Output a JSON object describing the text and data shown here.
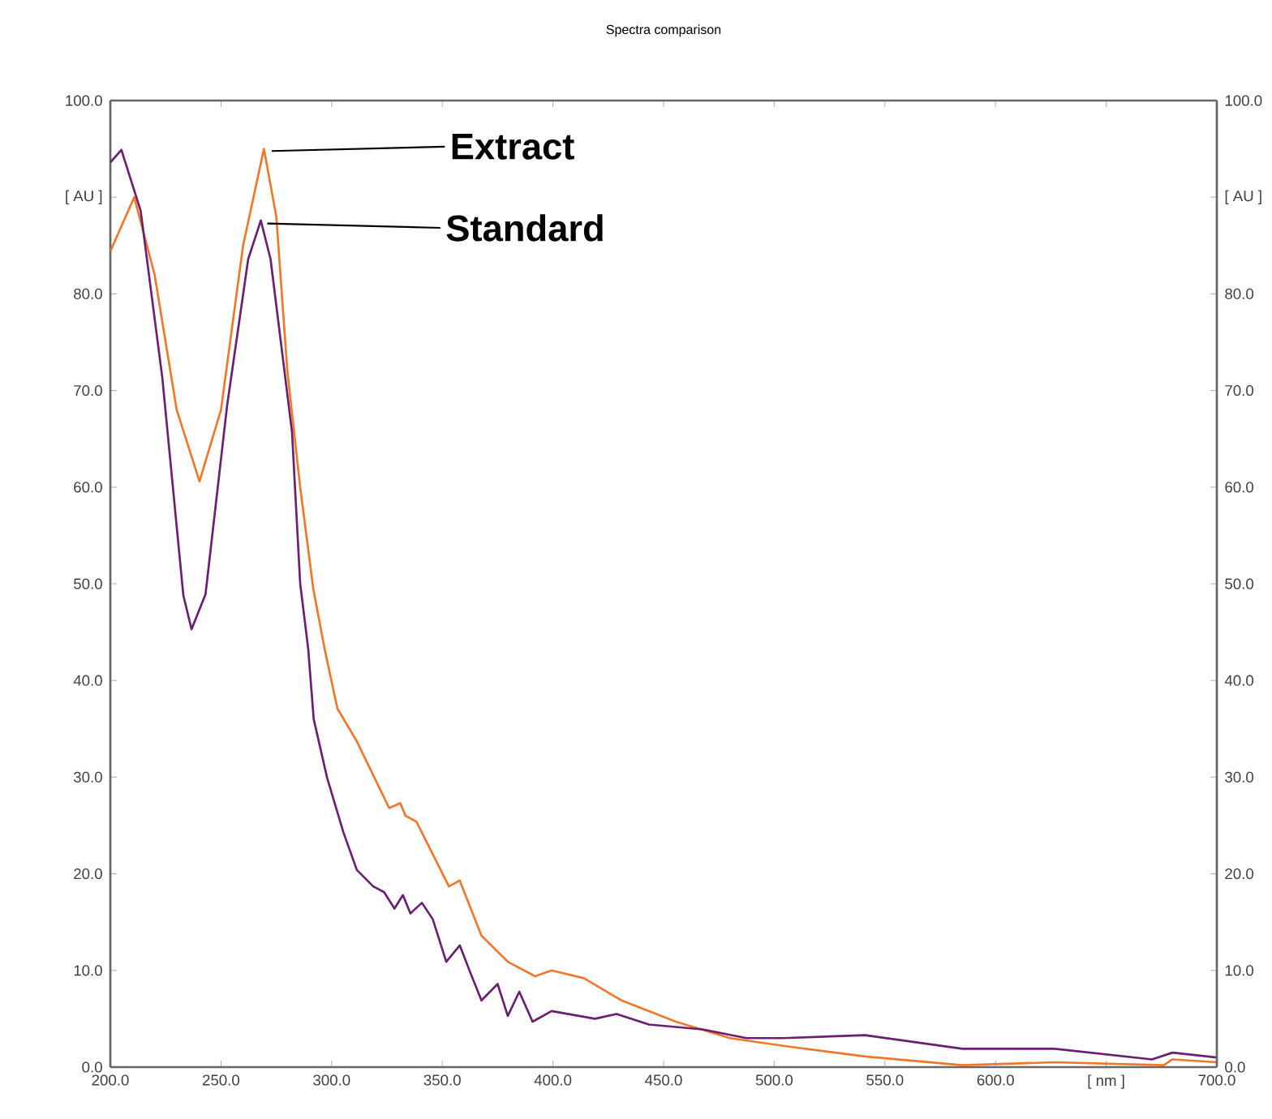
{
  "chart_data": {
    "type": "line",
    "title": "Spectra comparison",
    "xlim": [
      200,
      700
    ],
    "ylim": [
      0,
      100
    ],
    "y2lim": [
      0,
      100
    ],
    "xticks": [
      {
        "value": 200,
        "label": "200.0"
      },
      {
        "value": 250,
        "label": "250.0"
      },
      {
        "value": 300,
        "label": "300.0"
      },
      {
        "value": 350,
        "label": "350.0"
      },
      {
        "value": 400,
        "label": "400.0"
      },
      {
        "value": 450,
        "label": "450.0"
      },
      {
        "value": 500,
        "label": "500.0"
      },
      {
        "value": 550,
        "label": "550.0"
      },
      {
        "value": 600,
        "label": "600.0"
      },
      {
        "value": 650,
        "label": "[ nm ]"
      },
      {
        "value": 700,
        "label": "700.0"
      }
    ],
    "yticks": [
      {
        "value": 0,
        "label": "0.0"
      },
      {
        "value": 10,
        "label": "10.0"
      },
      {
        "value": 20,
        "label": "20.0"
      },
      {
        "value": 30,
        "label": "30.0"
      },
      {
        "value": 40,
        "label": "40.0"
      },
      {
        "value": 50,
        "label": "50.0"
      },
      {
        "value": 60,
        "label": "60.0"
      },
      {
        "value": 70,
        "label": "70.0"
      },
      {
        "value": 80,
        "label": "80.0"
      },
      {
        "value": 90,
        "label": "[ AU ]"
      },
      {
        "value": 100,
        "label": "100.0"
      }
    ],
    "y2ticks": [
      {
        "value": 0,
        "label": "0.0"
      },
      {
        "value": 10,
        "label": "10.0"
      },
      {
        "value": 20,
        "label": "20.0"
      },
      {
        "value": 30,
        "label": "30.0"
      },
      {
        "value": 40,
        "label": "40.0"
      },
      {
        "value": 50,
        "label": "50.0"
      },
      {
        "value": 60,
        "label": "60.0"
      },
      {
        "value": 70,
        "label": "70.0"
      },
      {
        "value": 80,
        "label": "80.0"
      },
      {
        "value": 90,
        "label": "[ AU ]"
      },
      {
        "value": 100,
        "label": "100.0"
      }
    ],
    "marker": "none",
    "line_style": "solid",
    "annotations": [
      {
        "text": "Extract",
        "x": 270,
        "y": 95
      },
      {
        "text": "Standard",
        "x": 268,
        "y": 87.5
      }
    ],
    "series": [
      {
        "color": "#f07828",
        "x": [
          200,
          210.8,
          220,
          230,
          240.3,
          250,
          260,
          269.4,
          275,
          280,
          285.8,
          291.7,
          296.8,
          302.6,
          311.4,
          326,
          331,
          333.4,
          338.3,
          353,
          357.9,
          367.7,
          379.6,
          392,
          399.4,
          414,
          431,
          455.6,
          480,
          504,
          541,
          585,
          626.7,
          676,
          680,
          700
        ],
        "values": [
          84.4,
          90,
          82,
          68,
          60.6,
          68,
          85,
          95,
          88,
          72,
          60,
          49.5,
          43.3,
          37.1,
          33.7,
          26.8,
          27.3,
          26,
          25.4,
          18.7,
          19.3,
          13.6,
          10.9,
          9.4,
          10,
          9.2,
          6.9,
          4.7,
          3,
          2.2,
          1.1,
          0.2,
          0.5,
          0.2,
          0.8,
          0.5
        ]
      },
      {
        "color": "#6a2070",
        "x": [
          200,
          205,
          213.7,
          223.5,
          233,
          236.7,
          243,
          252.8,
          262.3,
          268,
          272.4,
          282.1,
          285.8,
          289.4,
          291.9,
          298,
          305.3,
          311.4,
          318.8,
          323.7,
          328.4,
          332.2,
          335.6,
          340.8,
          345.7,
          351.8,
          357.9,
          362.8,
          367.7,
          375,
          379.6,
          384.8,
          390.8,
          399.4,
          419,
          428.7,
          443.4,
          467.6,
          487.4,
          504,
          541,
          585,
          626.7,
          670.7,
          680,
          700
        ],
        "values": [
          93.6,
          94.9,
          88.6,
          71.3,
          48.8,
          45.3,
          48.9,
          68.5,
          83.6,
          87.6,
          83.6,
          65.7,
          50,
          43.3,
          36,
          29.9,
          24.3,
          20.4,
          18.7,
          18.1,
          16.4,
          17.8,
          15.9,
          17,
          15.3,
          10.9,
          12.6,
          9.7,
          6.9,
          8.6,
          5.3,
          7.8,
          4.7,
          5.8,
          5,
          5.5,
          4.4,
          3.9,
          3,
          3,
          3.3,
          1.9,
          1.9,
          0.8,
          1.5,
          1
        ]
      }
    ]
  }
}
